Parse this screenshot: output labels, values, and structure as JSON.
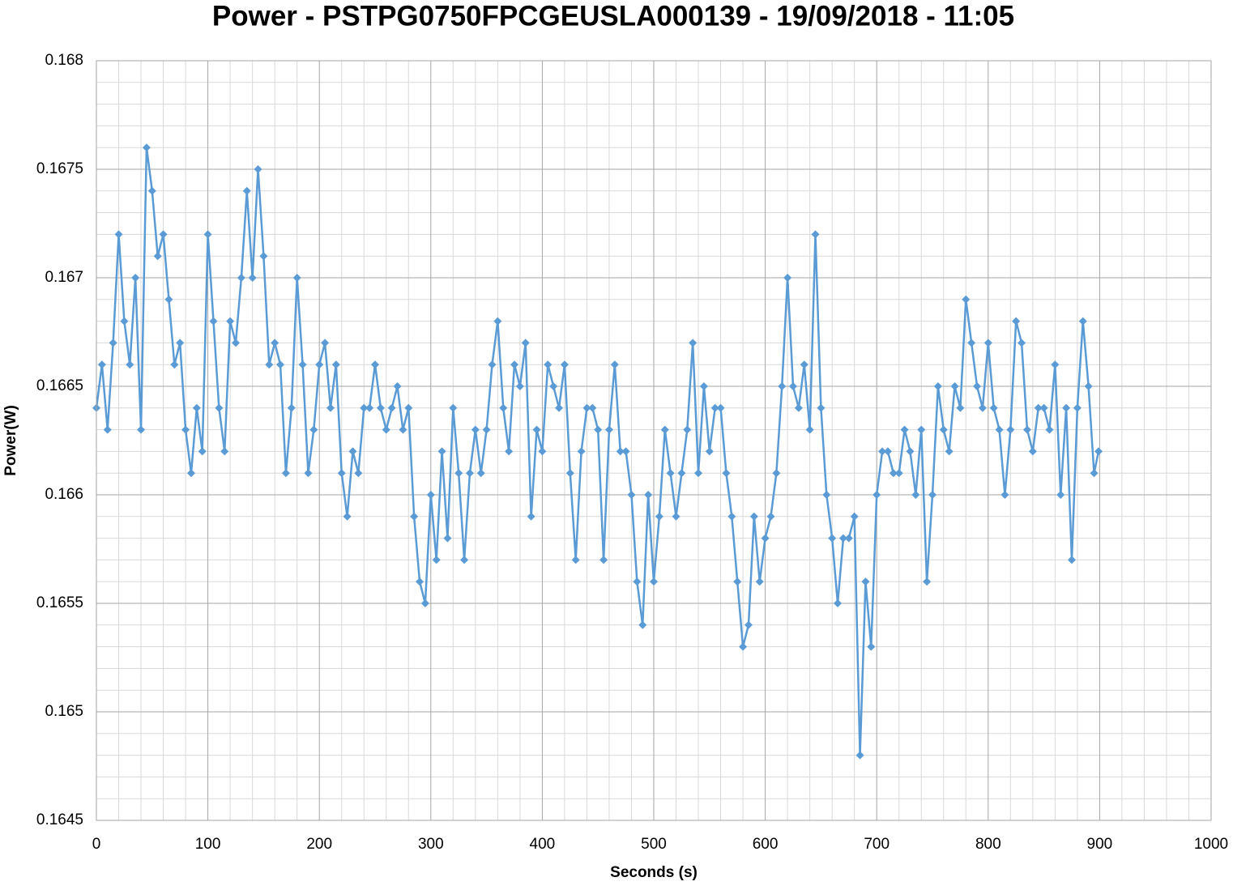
{
  "chart_data": {
    "type": "line",
    "title": "Power - PSTPG0750FPCGEUSLA000139 - 19/09/2018 - 11:05",
    "x_label": "Seconds (s)",
    "y_label": "Power(W)",
    "color": "#5b9bd5",
    "grid": true,
    "marker": "diamond",
    "xlim": [
      0,
      1000
    ],
    "xticks": [
      0,
      100,
      200,
      300,
      400,
      500,
      600,
      700,
      800,
      900,
      1000
    ],
    "ylim": [
      0.1645,
      0.168
    ],
    "yticks": [
      0.1645,
      0.165,
      0.1655,
      0.166,
      0.1665,
      0.167,
      0.1675,
      0.168
    ],
    "x": [
      0,
      5,
      10,
      15,
      20,
      25,
      30,
      35,
      40,
      45,
      50,
      55,
      60,
      65,
      70,
      75,
      80,
      85,
      90,
      95,
      100,
      105,
      110,
      115,
      120,
      125,
      130,
      135,
      140,
      145,
      150,
      155,
      160,
      165,
      170,
      175,
      180,
      185,
      190,
      195,
      200,
      205,
      210,
      215,
      220,
      225,
      230,
      235,
      240,
      245,
      250,
      255,
      260,
      265,
      270,
      275,
      280,
      285,
      290,
      295,
      300,
      305,
      310,
      315,
      320,
      325,
      330,
      335,
      340,
      345,
      350,
      355,
      360,
      365,
      370,
      375,
      380,
      385,
      390,
      395,
      400,
      405,
      410,
      415,
      420,
      425,
      430,
      435,
      440,
      445,
      450,
      455,
      460,
      465,
      470,
      475,
      480,
      485,
      490,
      495,
      500,
      505,
      510,
      515,
      520,
      525,
      530,
      535,
      540,
      545,
      550,
      555,
      560,
      565,
      570,
      575,
      580,
      585,
      590,
      595,
      600,
      605,
      610,
      615,
      620,
      625,
      630,
      635,
      640,
      645,
      650,
      655,
      660,
      665,
      670,
      675,
      680,
      685,
      690,
      695,
      700,
      705,
      710,
      715,
      720,
      725,
      730,
      735,
      740,
      745,
      750,
      755,
      760,
      765,
      770,
      775,
      780,
      785,
      790,
      795,
      800,
      805,
      810,
      815,
      820,
      825,
      830,
      835,
      840,
      845,
      850,
      855,
      860,
      865,
      870,
      875,
      880,
      885,
      890,
      895,
      899
    ],
    "values": [
      0.1664,
      0.1666,
      0.1663,
      0.1667,
      0.1672,
      0.1668,
      0.1666,
      0.167,
      0.1663,
      0.1676,
      0.1674,
      0.1671,
      0.1672,
      0.1669,
      0.1666,
      0.1667,
      0.1663,
      0.1661,
      0.1664,
      0.1662,
      0.1672,
      0.1668,
      0.1664,
      0.1662,
      0.1668,
      0.1667,
      0.167,
      0.1674,
      0.167,
      0.1675,
      0.1671,
      0.1666,
      0.1667,
      0.1666,
      0.1661,
      0.1664,
      0.167,
      0.1666,
      0.1661,
      0.1663,
      0.1666,
      0.1667,
      0.1664,
      0.1666,
      0.1661,
      0.1659,
      0.1662,
      0.1661,
      0.1664,
      0.1664,
      0.1666,
      0.1664,
      0.1663,
      0.1664,
      0.1665,
      0.1663,
      0.1664,
      0.1659,
      0.1656,
      0.1655,
      0.166,
      0.1657,
      0.1662,
      0.1658,
      0.1664,
      0.1661,
      0.1657,
      0.1661,
      0.1663,
      0.1661,
      0.1663,
      0.1666,
      0.1668,
      0.1664,
      0.1662,
      0.1666,
      0.1665,
      0.1667,
      0.1659,
      0.1663,
      0.1662,
      0.1666,
      0.1665,
      0.1664,
      0.1666,
      0.1661,
      0.1657,
      0.1662,
      0.1664,
      0.1664,
      0.1663,
      0.1657,
      0.1663,
      0.1666,
      0.1662,
      0.1662,
      0.166,
      0.1656,
      0.1654,
      0.166,
      0.1656,
      0.1659,
      0.1663,
      0.1661,
      0.1659,
      0.1661,
      0.1663,
      0.1667,
      0.1661,
      0.1665,
      0.1662,
      0.1664,
      0.1664,
      0.1661,
      0.1659,
      0.1656,
      0.1653,
      0.1654,
      0.1659,
      0.1656,
      0.1658,
      0.1659,
      0.1661,
      0.1665,
      0.167,
      0.1665,
      0.1664,
      0.1666,
      0.1663,
      0.1672,
      0.1664,
      0.166,
      0.1658,
      0.1655,
      0.1658,
      0.1658,
      0.1659,
      0.1648,
      0.1656,
      0.1653,
      0.166,
      0.1662,
      0.1662,
      0.1661,
      0.1661,
      0.1663,
      0.1662,
      0.166,
      0.1663,
      0.1656,
      0.166,
      0.1665,
      0.1663,
      0.1662,
      0.1665,
      0.1664,
      0.1669,
      0.1667,
      0.1665,
      0.1664,
      0.1667,
      0.1664,
      0.1663,
      0.166,
      0.1663,
      0.1668,
      0.1667,
      0.1663,
      0.1662,
      0.1664,
      0.1664,
      0.1663,
      0.1666,
      0.166,
      0.1664,
      0.1657,
      0.1664,
      0.1668,
      0.1665,
      0.1661,
      0.1662
    ]
  }
}
